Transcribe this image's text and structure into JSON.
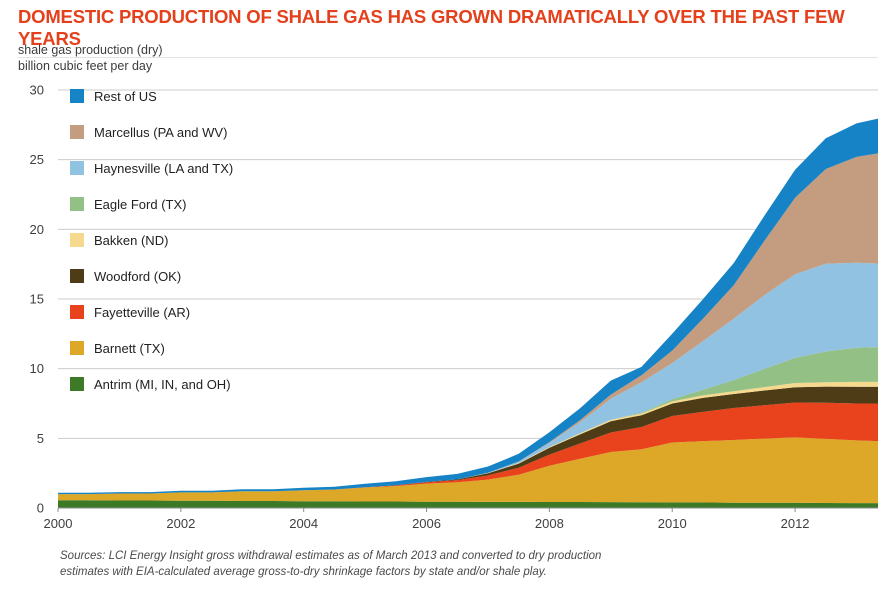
{
  "title": "DOMESTIC PRODUCTION OF SHALE GAS HAS GROWN DRAMATICALLY OVER THE PAST FEW YEARS",
  "subtitle_line1": "shale gas production (dry)",
  "subtitle_line2": "billion cubic feet per day",
  "source_line1": "Sources:  LCI Energy Insight gross withdrawal estimates as of March 2013 and converted to dry production",
  "source_line2": "estimates with EIA-calculated average gross-to-dry shrinkage factors by state and/or shale play.",
  "colors": {
    "title": "#e5401c",
    "axis_text": "#3f3f3f",
    "grid": "#cccccc",
    "baseline": "#8c8c8c"
  },
  "chart_data": {
    "type": "area",
    "stacked": true,
    "title": "Domestic production of shale gas (dry), billion cubic feet per day",
    "xlabel": "",
    "ylabel": "billion cubic feet per day",
    "xlim": [
      2000,
      2013.35
    ],
    "ylim": [
      0,
      30
    ],
    "xticks": [
      2000,
      2002,
      2004,
      2006,
      2008,
      2010,
      2012
    ],
    "yticks": [
      0,
      5,
      10,
      15,
      20,
      25,
      30
    ],
    "grid": "horizontal",
    "legend_position": "inside-top-left",
    "legend_order": "top series first (Rest of US) down to bottom series (Antrim)",
    "x": [
      2000,
      2000.5,
      2001,
      2001.5,
      2002,
      2002.5,
      2003,
      2003.5,
      2004,
      2004.5,
      2005,
      2005.5,
      2006,
      2006.5,
      2007,
      2007.5,
      2008,
      2008.5,
      2009,
      2009.5,
      2010,
      2010.5,
      2011,
      2011.5,
      2012,
      2012.5,
      2013,
      2013.35
    ],
    "series": [
      {
        "name": "Antrim (MI, IN, and OH)",
        "color": "#3c7a28",
        "values": [
          0.55,
          0.55,
          0.54,
          0.54,
          0.52,
          0.52,
          0.5,
          0.5,
          0.48,
          0.48,
          0.47,
          0.47,
          0.45,
          0.45,
          0.44,
          0.44,
          0.43,
          0.43,
          0.42,
          0.41,
          0.4,
          0.4,
          0.38,
          0.38,
          0.37,
          0.36,
          0.35,
          0.35
        ]
      },
      {
        "name": "Barnett (TX)",
        "color": "#dda827",
        "values": [
          0.45,
          0.45,
          0.5,
          0.5,
          0.6,
          0.6,
          0.7,
          0.7,
          0.8,
          0.85,
          1.0,
          1.1,
          1.3,
          1.4,
          1.6,
          1.95,
          2.6,
          3.1,
          3.6,
          3.8,
          4.3,
          4.4,
          4.5,
          4.6,
          4.7,
          4.6,
          4.5,
          4.45
        ]
      },
      {
        "name": "Fayetteville (AR)",
        "color": "#e8431c",
        "values": [
          0,
          0,
          0,
          0,
          0,
          0,
          0,
          0,
          0,
          0,
          0.02,
          0.05,
          0.1,
          0.15,
          0.3,
          0.5,
          0.8,
          1.1,
          1.4,
          1.6,
          1.9,
          2.1,
          2.3,
          2.4,
          2.5,
          2.6,
          2.65,
          2.7
        ]
      },
      {
        "name": "Woodford (OK)",
        "color": "#4d3c16",
        "values": [
          0,
          0,
          0,
          0,
          0,
          0,
          0,
          0,
          0,
          0,
          0,
          0,
          0.02,
          0.05,
          0.15,
          0.3,
          0.5,
          0.65,
          0.8,
          0.85,
          0.9,
          1.0,
          1.0,
          1.05,
          1.1,
          1.15,
          1.2,
          1.2
        ]
      },
      {
        "name": "Bakken (ND)",
        "color": "#f5d98f",
        "values": [
          0,
          0,
          0,
          0,
          0,
          0,
          0,
          0,
          0,
          0,
          0,
          0,
          0,
          0,
          0.02,
          0.03,
          0.05,
          0.08,
          0.1,
          0.12,
          0.15,
          0.18,
          0.2,
          0.25,
          0.3,
          0.32,
          0.35,
          0.35
        ]
      },
      {
        "name": "Eagle Ford (TX)",
        "color": "#93c084",
        "values": [
          0,
          0,
          0,
          0,
          0,
          0,
          0,
          0,
          0,
          0,
          0,
          0,
          0,
          0,
          0,
          0,
          0,
          0,
          0.02,
          0.05,
          0.15,
          0.4,
          0.8,
          1.3,
          1.8,
          2.2,
          2.45,
          2.5
        ]
      },
      {
        "name": "Haynesville (LA and TX)",
        "color": "#92c2e2",
        "values": [
          0,
          0,
          0,
          0,
          0,
          0,
          0,
          0,
          0,
          0,
          0,
          0,
          0,
          0,
          0.02,
          0.1,
          0.3,
          0.8,
          1.5,
          2.2,
          2.6,
          3.5,
          4.4,
          5.3,
          6.0,
          6.3,
          6.1,
          6.0
        ]
      },
      {
        "name": "Marcellus (PA and WV)",
        "color": "#c49c80",
        "values": [
          0,
          0,
          0,
          0,
          0,
          0,
          0,
          0,
          0,
          0,
          0,
          0,
          0,
          0,
          0,
          0.02,
          0.05,
          0.15,
          0.3,
          0.5,
          0.9,
          1.6,
          2.4,
          3.9,
          5.5,
          6.8,
          7.6,
          7.9
        ]
      },
      {
        "name": "Rest of US",
        "color": "#1583c5",
        "values": [
          0.1,
          0.1,
          0.1,
          0.1,
          0.12,
          0.12,
          0.15,
          0.15,
          0.18,
          0.2,
          0.25,
          0.3,
          0.35,
          0.4,
          0.45,
          0.55,
          0.7,
          0.85,
          1.0,
          0.6,
          1.2,
          1.4,
          1.6,
          1.8,
          2.0,
          2.2,
          2.4,
          2.5
        ]
      }
    ]
  }
}
